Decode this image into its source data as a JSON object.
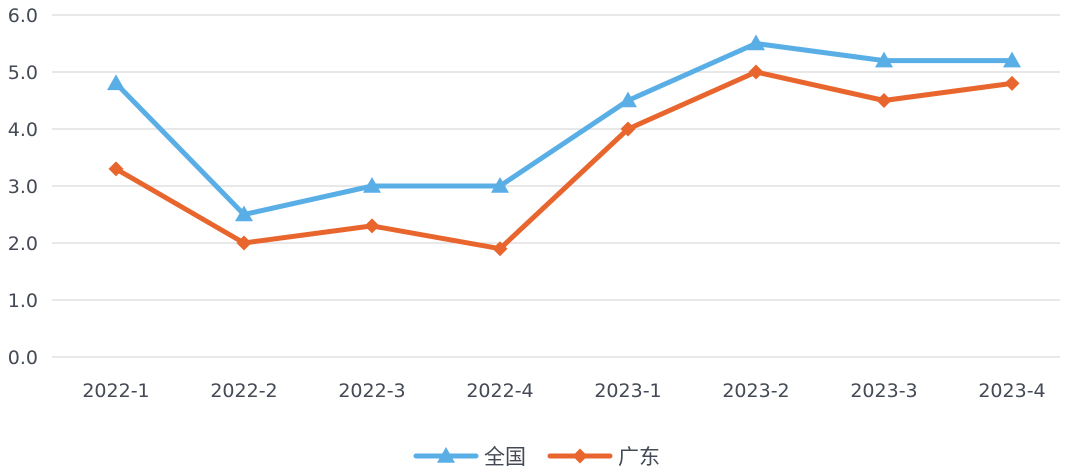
{
  "chart_data": {
    "type": "line",
    "categories": [
      "2022-1",
      "2022-2",
      "2022-3",
      "2022-4",
      "2023-1",
      "2023-2",
      "2023-3",
      "2023-4"
    ],
    "ylim": [
      0,
      6
    ],
    "yticks": [
      "0.0",
      "1.0",
      "2.0",
      "3.0",
      "4.0",
      "5.0",
      "6.0"
    ],
    "grid": true,
    "legend_position": "bottom",
    "series": [
      {
        "name": "全国",
        "color": "#5aaee6",
        "marker": "triangle",
        "values": [
          4.8,
          2.5,
          3.0,
          3.0,
          4.5,
          5.5,
          5.2,
          5.2
        ]
      },
      {
        "name": "广东",
        "color": "#e8662d",
        "marker": "diamond",
        "values": [
          3.3,
          2.0,
          2.3,
          1.9,
          4.0,
          5.0,
          4.5,
          4.8
        ]
      }
    ]
  }
}
